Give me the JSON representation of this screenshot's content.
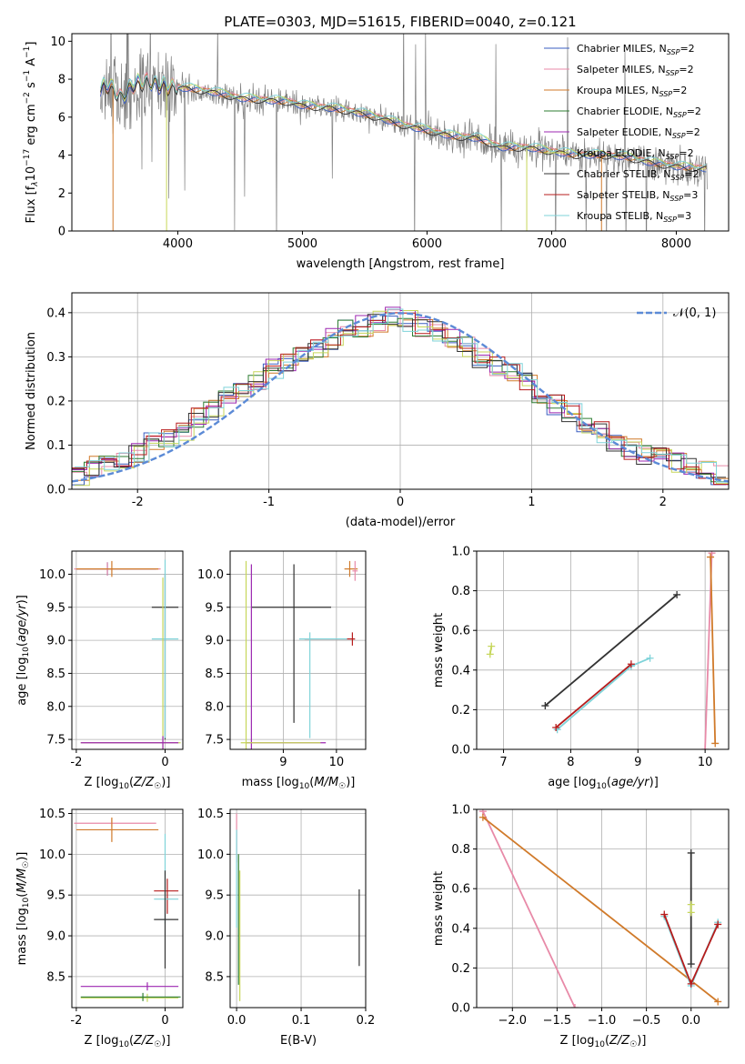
{
  "title": "PLATE=0303, MJD=51615, FIBERID=0040, z=0.121",
  "colors": {
    "Chabrier MILES": "#3a5dc0",
    "Salpeter MILES": "#e88aa8",
    "Kroupa MILES": "#d07a2a",
    "Chabrier ELODIE": "#2e7d32",
    "Salpeter ELODIE": "#9c27b0",
    "Kroupa ELODIE": "#c6d65a",
    "Chabrier STELIB": "#333333",
    "Salpeter STELIB": "#b71c1c",
    "Kroupa STELIB": "#7fd3d9",
    "data": "#808080",
    "normal": "#5b8ad6"
  },
  "legend_spectrum": [
    {
      "name": "Chabrier MILES",
      "nssp": "2"
    },
    {
      "name": "Salpeter MILES",
      "nssp": "2"
    },
    {
      "name": "Kroupa MILES",
      "nssp": "2"
    },
    {
      "name": "Chabrier ELODIE",
      "nssp": "2"
    },
    {
      "name": "Salpeter ELODIE",
      "nssp": "2"
    },
    {
      "name": "Kroupa ELODIE",
      "nssp": "2"
    },
    {
      "name": "Chabrier STELIB",
      "nssp": "2"
    },
    {
      "name": "Salpeter STELIB",
      "nssp": "3"
    },
    {
      "name": "Kroupa STELIB",
      "nssp": "3"
    }
  ],
  "nssp_prefix": "N",
  "nssp_sub": "SSP",
  "legend_hist": "𝒩(0, 1)",
  "chart_data": [
    {
      "id": "spectrum",
      "type": "line",
      "xlabel": "wavelength [Angstrom, rest frame]",
      "ylabel": "Flux [f",
      "xlim": [
        3150,
        8420
      ],
      "ylim": [
        0,
        10.4
      ],
      "xticks": [
        4000,
        5000,
        6000,
        7000,
        8000
      ],
      "yticks": [
        0,
        2,
        4,
        6,
        8,
        10
      ],
      "continuum": [
        [
          3380,
          7.4
        ],
        [
          3450,
          7.7
        ],
        [
          3550,
          7.0
        ],
        [
          3650,
          7.7
        ],
        [
          3750,
          7.9
        ],
        [
          3850,
          7.6
        ],
        [
          3950,
          7.6
        ],
        [
          4100,
          7.5
        ],
        [
          4300,
          7.3
        ],
        [
          4500,
          7.0
        ],
        [
          4700,
          6.9
        ],
        [
          4900,
          6.8
        ],
        [
          5000,
          6.6
        ],
        [
          5200,
          6.5
        ],
        [
          5400,
          6.3
        ],
        [
          5600,
          6.0
        ],
        [
          5800,
          5.6
        ],
        [
          6000,
          5.3
        ],
        [
          6200,
          5.0
        ],
        [
          6400,
          4.9
        ],
        [
          6600,
          4.4
        ],
        [
          6800,
          4.4
        ],
        [
          7000,
          4.2
        ],
        [
          7200,
          4.0
        ],
        [
          7400,
          4.0
        ],
        [
          7600,
          3.9
        ],
        [
          7800,
          3.6
        ],
        [
          8000,
          3.4
        ],
        [
          8200,
          3.3
        ]
      ]
    },
    {
      "id": "residual-histogram",
      "type": "line",
      "xlabel": "(data-model)/error",
      "ylabel": "Normed distribution",
      "xlim": [
        -2.5,
        2.5
      ],
      "ylim": [
        0,
        0.445
      ],
      "xticks": [
        -2,
        -1,
        0,
        1,
        2
      ],
      "yticks": [
        0.0,
        0.1,
        0.2,
        0.3,
        0.4
      ],
      "hist_center": [
        0.03,
        0.05,
        0.06,
        0.06,
        0.08,
        0.11,
        0.12,
        0.13,
        0.16,
        0.18,
        0.21,
        0.22,
        0.25,
        0.27,
        0.29,
        0.3,
        0.32,
        0.34,
        0.36,
        0.37,
        0.38,
        0.39,
        0.38,
        0.37,
        0.36,
        0.34,
        0.32,
        0.3,
        0.28,
        0.26,
        0.24,
        0.22,
        0.19,
        0.17,
        0.15,
        0.13,
        0.11,
        0.09,
        0.08,
        0.07,
        0.06,
        0.05,
        0.04,
        0.03
      ],
      "normal": {
        "mean": 0,
        "sigma": 1,
        "peak": 0.399
      }
    },
    {
      "id": "age-vs-Z",
      "type": "scatter",
      "xlabel": "Z [log10(Z/Z☉)]",
      "ylabel": "age [log10(age/yr)]",
      "xlim": [
        -2.1,
        0.4
      ],
      "ylim": [
        7.35,
        10.35
      ],
      "xticks": [
        -2,
        0
      ],
      "yticks": [
        7.5,
        8.0,
        8.5,
        9.0,
        9.5,
        10.0
      ],
      "points": [
        {
          "s": "Chabrier MILES",
          "x": -1.3,
          "y": 10.08,
          "xe": [
            -2.0,
            -0.2
          ],
          "ye": [
            0.1,
            0.1
          ]
        },
        {
          "s": "Salpeter MILES",
          "x": -1.3,
          "y": 10.08,
          "xe": [
            -2.05,
            -0.1
          ],
          "ye": [
            0.1,
            0.1
          ]
        },
        {
          "s": "Kroupa MILES",
          "x": -1.2,
          "y": 10.08,
          "xe": [
            -2.0,
            -0.15
          ],
          "ye": [
            0.12,
            0.12
          ]
        },
        {
          "s": "Chabrier STELIB",
          "x": 0.0,
          "y": 9.5,
          "xe": [
            -0.3,
            0.3
          ],
          "ye": [
            2.0,
            0.5
          ]
        },
        {
          "s": "Kroupa STELIB",
          "x": 0.0,
          "y": 9.02,
          "xe": [
            -0.3,
            0.3
          ],
          "ye": [
            1.5,
            1.2
          ]
        },
        {
          "s": "Kroupa ELODIE",
          "x": -0.05,
          "y": 7.45,
          "xe": [
            -1.9,
            0.35
          ],
          "ye": [
            0.3,
            2.5
          ]
        },
        {
          "s": "Salpeter ELODIE",
          "x": -0.05,
          "y": 7.45,
          "xe": [
            -1.9,
            0.3
          ],
          "ye": [
            0.1,
            0.1
          ]
        }
      ]
    },
    {
      "id": "age-vs-mass",
      "type": "scatter",
      "xlabel": "mass [log10(M/M☉)]",
      "ylabel": "",
      "xlim": [
        8.0,
        10.55
      ],
      "ylim": [
        7.35,
        10.35
      ],
      "xticks": [
        9,
        10
      ],
      "yticks": [
        7.5,
        8.0,
        8.5,
        9.0,
        9.5,
        10.0
      ],
      "points": [
        {
          "s": "Chabrier STELIB",
          "x": 9.2,
          "y": 9.5,
          "xe": [
            8.4,
            9.9
          ],
          "ye": [
            1.75,
            0.65
          ]
        },
        {
          "s": "Salpeter STELIB",
          "x": 10.3,
          "y": 9.02,
          "xe": [
            9.4,
            10.35
          ],
          "ye": [
            0.1,
            0.1
          ]
        },
        {
          "s": "Kroupa STELIB",
          "x": 9.5,
          "y": 9.02,
          "xe": [
            9.3,
            10.2
          ],
          "ye": [
            1.5,
            0.1
          ]
        },
        {
          "s": "Salpeter ELODIE",
          "x": 8.4,
          "y": 7.45,
          "xe": [
            8.3,
            9.8
          ],
          "ye": [
            0.1,
            2.7
          ]
        },
        {
          "s": "Kroupa ELODIE",
          "x": 8.3,
          "y": 7.45,
          "xe": [
            8.2,
            9.7
          ],
          "ye": [
            0.1,
            2.75
          ]
        },
        {
          "s": "Kroupa MILES",
          "x": 10.25,
          "y": 10.08,
          "xe": [
            10.15,
            10.4
          ],
          "ye": [
            0.12,
            0.12
          ]
        },
        {
          "s": "Salpeter MILES",
          "x": 10.35,
          "y": 10.05,
          "xe": [
            10.3,
            10.4
          ],
          "ye": [
            0.15,
            0.15
          ]
        }
      ]
    },
    {
      "id": "weight-vs-age",
      "type": "line",
      "xlabel": "age [log10(age/yr)]",
      "ylabel": "mass weight",
      "xlim": [
        6.6,
        10.35
      ],
      "ylim": [
        0,
        1.0
      ],
      "xticks": [
        7,
        8,
        9,
        10
      ],
      "yticks": [
        0.0,
        0.2,
        0.4,
        0.6,
        0.8,
        1.0
      ],
      "lines": [
        {
          "s": "Chabrier STELIB",
          "pts": [
            [
              7.62,
              0.22
            ],
            [
              9.58,
              0.78
            ]
          ]
        },
        {
          "s": "Kroupa STELIB",
          "pts": [
            [
              7.8,
              0.1
            ],
            [
              8.9,
              0.42
            ],
            [
              9.18,
              0.46
            ]
          ]
        },
        {
          "s": "Salpeter STELIB",
          "pts": [
            [
              7.78,
              0.11
            ],
            [
              8.9,
              0.43
            ]
          ]
        },
        {
          "s": "Kroupa ELODIE",
          "pts": [
            [
              6.8,
              0.48
            ],
            [
              6.82,
              0.52
            ]
          ]
        },
        {
          "s": "Salpeter MILES",
          "pts": [
            [
              10.0,
              0.0
            ],
            [
              10.1,
              0.99
            ]
          ]
        },
        {
          "s": "Kroupa MILES",
          "pts": [
            [
              10.08,
              0.97
            ],
            [
              10.15,
              0.03
            ]
          ]
        }
      ]
    },
    {
      "id": "mass-vs-Z",
      "type": "scatter",
      "xlabel": "Z [log10(Z/Z☉)]",
      "ylabel": "mass [log10(M/M☉)]",
      "xlim": [
        -2.1,
        0.4
      ],
      "ylim": [
        8.12,
        10.55
      ],
      "xticks": [
        -2,
        0
      ],
      "yticks": [
        8.5,
        9.0,
        9.5,
        10.0,
        10.5
      ],
      "points": [
        {
          "s": "Salpeter MILES",
          "x": -1.2,
          "y": 10.38,
          "xe": [
            -2.05,
            -0.2
          ],
          "ye": [
            0.05,
            0.05
          ]
        },
        {
          "s": "Kroupa MILES",
          "x": -1.2,
          "y": 10.3,
          "xe": [
            -2.0,
            -0.15
          ],
          "ye": [
            0.15,
            0.15
          ]
        },
        {
          "s": "Salpeter STELIB",
          "x": 0.05,
          "y": 9.55,
          "xe": [
            -0.25,
            0.3
          ],
          "ye": [
            0.28,
            0.15
          ]
        },
        {
          "s": "Kroupa STELIB",
          "x": 0.0,
          "y": 9.45,
          "xe": [
            -0.25,
            0.3
          ],
          "ye": [
            0.3,
            0.8
          ]
        },
        {
          "s": "Chabrier STELIB",
          "x": 0.0,
          "y": 9.2,
          "xe": [
            -0.25,
            0.3
          ],
          "ye": [
            0.6,
            0.6
          ]
        },
        {
          "s": "Salpeter ELODIE",
          "x": -0.4,
          "y": 8.38,
          "xe": [
            -1.9,
            0.3
          ],
          "ye": [
            0.05,
            0.05
          ]
        },
        {
          "s": "Kroupa ELODIE",
          "x": -0.4,
          "y": 8.24,
          "xe": [
            -1.9,
            0.3
          ],
          "ye": [
            0.05,
            0.05
          ]
        },
        {
          "s": "Chabrier ELODIE",
          "x": -0.5,
          "y": 8.25,
          "xe": [
            -1.9,
            0.35
          ],
          "ye": [
            0.05,
            0.05
          ]
        }
      ]
    },
    {
      "id": "mass-vs-ebv",
      "type": "scatter",
      "xlabel": "E(B-V)",
      "ylabel": "",
      "xlim": [
        -0.01,
        0.2
      ],
      "ylim": [
        8.12,
        10.55
      ],
      "xticks": [
        0.0,
        0.1,
        0.2
      ],
      "yticks": [
        8.5,
        9.0,
        9.5,
        10.0,
        10.5
      ],
      "points": [
        {
          "s": "Salpeter MILES",
          "x": 0.0,
          "y": 10.2,
          "ye": [
            0.3,
            0.3
          ]
        },
        {
          "s": "Kroupa STELIB",
          "x": 0.0,
          "y": 9.7,
          "ye": [
            0.6,
            0.6
          ]
        },
        {
          "s": "Chabrier ELODIE",
          "x": 0.003,
          "y": 9.2,
          "ye": [
            0.8,
            0.8
          ]
        },
        {
          "s": "Kroupa ELODIE",
          "x": 0.005,
          "y": 9.0,
          "ye": [
            0.8,
            0.8
          ]
        },
        {
          "s": "Chabrier STELIB",
          "x": 0.19,
          "y": 9.1,
          "ye": [
            0.47,
            0.47
          ]
        }
      ]
    },
    {
      "id": "weight-vs-Z",
      "type": "line",
      "xlabel": "Z [log10(Z/Z☉)]",
      "ylabel": "mass weight",
      "xlim": [
        -2.4,
        0.42
      ],
      "ylim": [
        0,
        1.0
      ],
      "xticks": [
        -2.0,
        -1.5,
        -1.0,
        -0.5,
        0.0
      ],
      "yticks": [
        0.0,
        0.2,
        0.4,
        0.6,
        0.8,
        1.0
      ],
      "lines": [
        {
          "s": "Salpeter MILES",
          "pts": [
            [
              -2.33,
              0.99
            ],
            [
              -1.3,
              0.0
            ]
          ]
        },
        {
          "s": "Kroupa MILES",
          "pts": [
            [
              -2.33,
              0.96
            ],
            [
              0.3,
              0.03
            ]
          ]
        },
        {
          "s": "Chabrier STELIB",
          "pts": [
            [
              0.0,
              0.22
            ],
            [
              0.0,
              0.78
            ]
          ]
        },
        {
          "s": "Kroupa STELIB",
          "pts": [
            [
              -0.3,
              0.46
            ],
            [
              0.0,
              0.11
            ],
            [
              0.3,
              0.43
            ]
          ]
        },
        {
          "s": "Salpeter STELIB",
          "pts": [
            [
              -0.3,
              0.47
            ],
            [
              0.0,
              0.12
            ],
            [
              0.3,
              0.42
            ]
          ]
        },
        {
          "s": "Kroupa ELODIE",
          "pts": [
            [
              0.0,
              0.48
            ],
            [
              0.0,
              0.52
            ]
          ]
        }
      ]
    }
  ]
}
